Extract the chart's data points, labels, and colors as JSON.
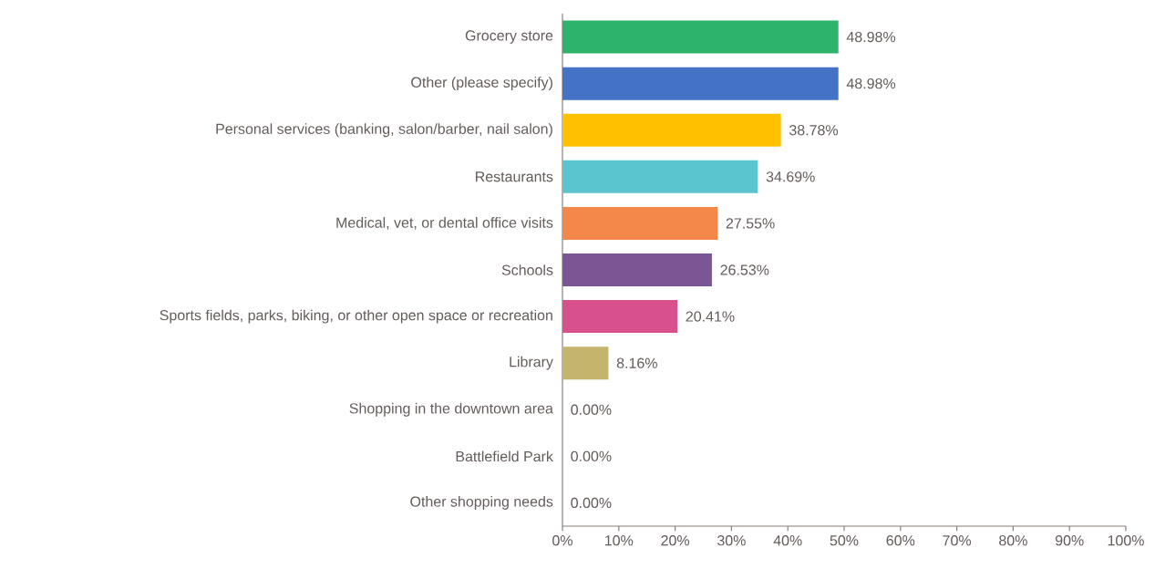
{
  "chart_data": {
    "type": "bar",
    "orientation": "horizontal",
    "categories": [
      "Grocery store",
      "Other (please specify)",
      "Personal services (banking, salon/barber, nail salon)",
      "Restaurants",
      "Medical, vet, or dental office visits",
      "Schools",
      "Sports fields, parks, biking, or other open space or recreation",
      "Library",
      "Shopping in the downtown area",
      "Battlefield Park",
      "Other shopping needs"
    ],
    "values": [
      48.98,
      48.98,
      38.78,
      34.69,
      27.55,
      26.53,
      20.41,
      8.16,
      0,
      0,
      0
    ],
    "value_labels": [
      "48.98%",
      "48.98%",
      "38.78%",
      "34.69%",
      "27.55%",
      "26.53%",
      "20.41%",
      "8.16%",
      "0.00%",
      "0.00%",
      "0.00%"
    ],
    "colors": [
      "#2db36a",
      "#4472c4",
      "#ffc000",
      "#5bc5cf",
      "#f4884a",
      "#7b5695",
      "#d9508f",
      "#c4b46c",
      "#a5a5a5",
      "#a5a5a5",
      "#a5a5a5"
    ],
    "xlim": [
      0,
      100
    ],
    "xticks": [
      {
        "value": 0,
        "label": "0%"
      },
      {
        "value": 10,
        "label": "10%"
      },
      {
        "value": 20,
        "label": "20%"
      },
      {
        "value": 30,
        "label": "30%"
      },
      {
        "value": 40,
        "label": "40%"
      },
      {
        "value": 50,
        "label": "50%"
      },
      {
        "value": 60,
        "label": "60%"
      },
      {
        "value": 70,
        "label": "70%"
      },
      {
        "value": 80,
        "label": "80%"
      },
      {
        "value": 90,
        "label": "90%"
      },
      {
        "value": 100,
        "label": "100%"
      }
    ]
  }
}
